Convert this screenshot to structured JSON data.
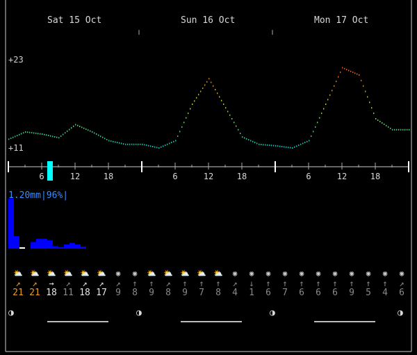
{
  "days": [
    "Sat 15 Oct",
    "Sun 16 Oct",
    "Mon 17 Oct"
  ],
  "temp_axis": {
    "max_label": "+23",
    "min_label": "+11"
  },
  "hour_ticks": [
    "6",
    "12",
    "18",
    "6",
    "12",
    "18",
    "6",
    "12",
    "18"
  ],
  "rain_label": "1.20mm|96%|",
  "chart_data": {
    "type": "line",
    "title": "",
    "xlabel": "",
    "ylabel": "",
    "ylim": [
      11,
      23
    ],
    "x_hours": [
      0,
      3,
      6,
      9,
      12,
      15,
      18,
      21,
      24,
      27,
      30,
      33,
      36,
      39,
      42,
      45,
      48,
      51,
      54,
      57,
      60,
      63,
      66,
      69,
      72
    ],
    "temperature": [
      12.2,
      13.2,
      12.9,
      12.4,
      14.2,
      13.2,
      12.0,
      11.5,
      11.5,
      11.0,
      12.0,
      17.0,
      20.5,
      16.5,
      12.5,
      11.5,
      11.3,
      11.0,
      12.0,
      17.0,
      22.0,
      21.0,
      15.0,
      13.5,
      13.5
    ],
    "rain_series": [
      {
        "name": "",
        "values": [
          1.2,
          0.3,
          0.05,
          0,
          0.16,
          0.24,
          0.24,
          0.2,
          0.06,
          0.04,
          0.1,
          0.14,
          0.1,
          0.05
        ]
      }
    ]
  },
  "forecast_columns": [
    {
      "icon": "partly-cloudy-icon",
      "arrow": "↗",
      "speed": "21",
      "color": "#e8a020"
    },
    {
      "icon": "partly-cloudy-icon",
      "arrow": "↗",
      "speed": "21",
      "color": "#e8a020"
    },
    {
      "icon": "partly-cloudy-icon",
      "arrow": "→",
      "speed": "18",
      "color": "#e6e6e6"
    },
    {
      "icon": "partly-cloudy-icon",
      "arrow": "↗",
      "speed": "11",
      "color": "#8a8a8a"
    },
    {
      "icon": "partly-cloudy-icon",
      "arrow": "↗",
      "speed": "18",
      "color": "#e6e6e6"
    },
    {
      "icon": "partly-cloudy-icon",
      "arrow": "↗",
      "speed": "17",
      "color": "#e6e6e6"
    },
    {
      "icon": "clear-icon",
      "arrow": "↗",
      "speed": "9",
      "color": "#8a8a8a"
    },
    {
      "icon": "clear-icon",
      "arrow": "↑",
      "speed": "8",
      "color": "#8a8a8a"
    },
    {
      "icon": "partly-cloudy-icon",
      "arrow": "↑",
      "speed": "9",
      "color": "#8a8a8a"
    },
    {
      "icon": "partly-cloudy-icon",
      "arrow": "↗",
      "speed": "8",
      "color": "#8a8a8a"
    },
    {
      "icon": "partly-cloudy-icon",
      "arrow": "↑",
      "speed": "9",
      "color": "#8a8a8a"
    },
    {
      "icon": "partly-cloudy-icon",
      "arrow": "↑",
      "speed": "7",
      "color": "#8a8a8a"
    },
    {
      "icon": "partly-cloudy-icon",
      "arrow": "↑",
      "speed": "8",
      "color": "#8a8a8a"
    },
    {
      "icon": "clear-icon",
      "arrow": "↗",
      "speed": "4",
      "color": "#8a8a8a"
    },
    {
      "icon": "clear-icon",
      "arrow": "↓",
      "speed": "1",
      "color": "#8a8a8a"
    },
    {
      "icon": "clear-icon",
      "arrow": "↑",
      "speed": "6",
      "color": "#8a8a8a"
    },
    {
      "icon": "clear-icon",
      "arrow": "↑",
      "speed": "7",
      "color": "#8a8a8a"
    },
    {
      "icon": "clear-icon",
      "arrow": "↑",
      "speed": "6",
      "color": "#8a8a8a"
    },
    {
      "icon": "clear-icon",
      "arrow": "↑",
      "speed": "6",
      "color": "#8a8a8a"
    },
    {
      "icon": "clear-icon",
      "arrow": "↑",
      "speed": "6",
      "color": "#8a8a8a"
    },
    {
      "icon": "clear-icon",
      "arrow": "↑",
      "speed": "9",
      "color": "#8a8a8a"
    },
    {
      "icon": "clear-icon",
      "arrow": "↑",
      "speed": "5",
      "color": "#8a8a8a"
    },
    {
      "icon": "clear-icon",
      "arrow": "↑",
      "speed": "4",
      "color": "#8a8a8a"
    },
    {
      "icon": "clear-icon",
      "arrow": "↗",
      "speed": "6",
      "color": "#8a8a8a"
    }
  ],
  "moon_phase_symbol": "◑",
  "colors": {
    "rain": "#0000ff",
    "rain_text": "#3a8cff",
    "now_marker": "#00ffff",
    "axis": "#cccccc"
  }
}
